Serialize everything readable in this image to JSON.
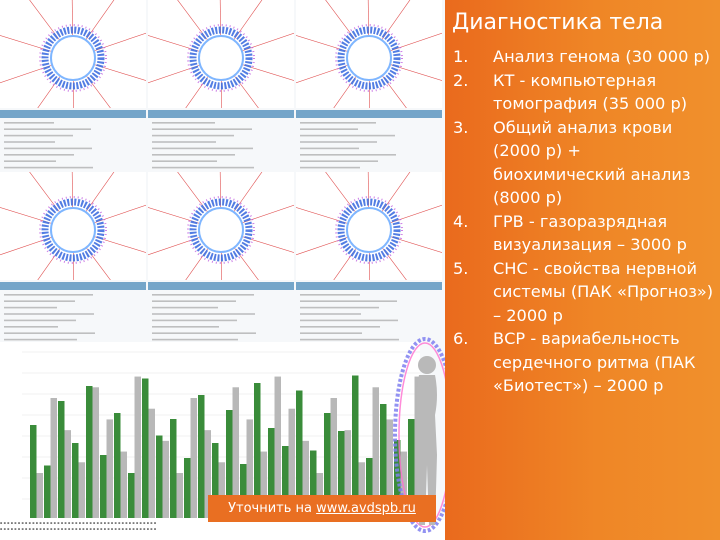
{
  "panel": {
    "title": "Диагностика тела",
    "items": [
      {
        "num": "1.",
        "text": "Анализ генома (30 000 р)"
      },
      {
        "num": "2.",
        "text": "КТ - компьютерная томография (35 000 р)"
      },
      {
        "num": "3.",
        "text": "Общий анализ крови (2000 р) + биохимический анализ (8000 р)"
      },
      {
        "num": "4.",
        "text": "ГРВ - газоразрядная визуализация – 3000 р"
      },
      {
        "num": "5.",
        "text": "СНС - свойства нервной системы (ПАК «Прогноз») – 2000 р"
      },
      {
        "num": "6.",
        "text": "ВСР - вариабельность сердечного ритма (ПАК «Биотест») – 2000 р"
      }
    ]
  },
  "banner": {
    "prefix": "Уточнить на ",
    "link": "www.avdspb.ru"
  },
  "colors": {
    "panel_orange": "#ee7f25",
    "banner_orange": "#e96f22",
    "bar_green": "#3a8c3a",
    "bar_gray": "#b8b8b8",
    "tile_header_blue": "#74a5c9"
  },
  "decorations": {
    "collage_icon": "gdv-glow-ring-image",
    "silhouette_icon": "human-silhouette-image"
  }
}
